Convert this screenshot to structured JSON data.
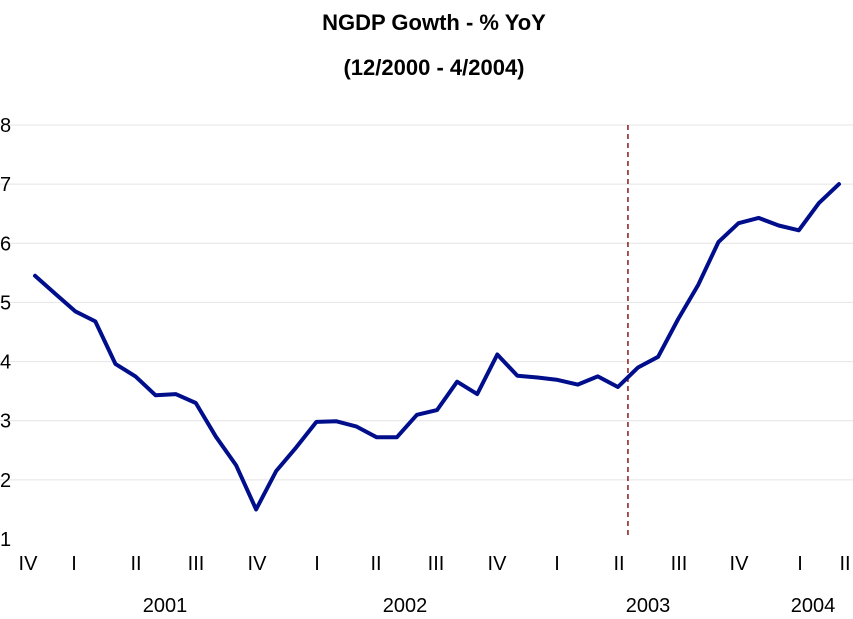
{
  "chart_data": {
    "type": "line",
    "title": "NGDP Gowth - % YoY",
    "subtitle": "(12/2000 - 4/2004)",
    "xlabel": "",
    "ylabel": "",
    "ylim": [
      1,
      8
    ],
    "yticks": [
      "8",
      "7",
      "6",
      "5",
      "4",
      "3",
      "2",
      "1"
    ],
    "quarter_labels": [
      "IV",
      "I",
      "II",
      "III",
      "IV",
      "I",
      "II",
      "III",
      "IV",
      "I",
      "II",
      "III",
      "IV",
      "I",
      "II"
    ],
    "year_labels": [
      "2001",
      "2002",
      "2003",
      "2004"
    ],
    "grid": true,
    "series": [
      {
        "name": "NGDP Growth % YoY",
        "color": "#000e8c",
        "values": [
          5.45,
          5.15,
          4.85,
          4.68,
          3.96,
          3.75,
          3.43,
          3.45,
          3.3,
          2.73,
          2.25,
          1.5,
          2.15,
          2.55,
          2.98,
          2.99,
          2.9,
          2.72,
          2.72,
          3.1,
          3.18,
          3.66,
          3.45,
          4.12,
          3.76,
          3.73,
          3.69,
          3.61,
          3.75,
          3.57,
          3.9,
          4.08,
          4.72,
          5.3,
          6.02,
          6.34,
          6.43,
          6.3,
          6.22,
          6.68,
          7.0
        ]
      }
    ],
    "vertical_marker": {
      "index": 29.5,
      "color": "#8b1a1a",
      "style": "dashed"
    }
  }
}
